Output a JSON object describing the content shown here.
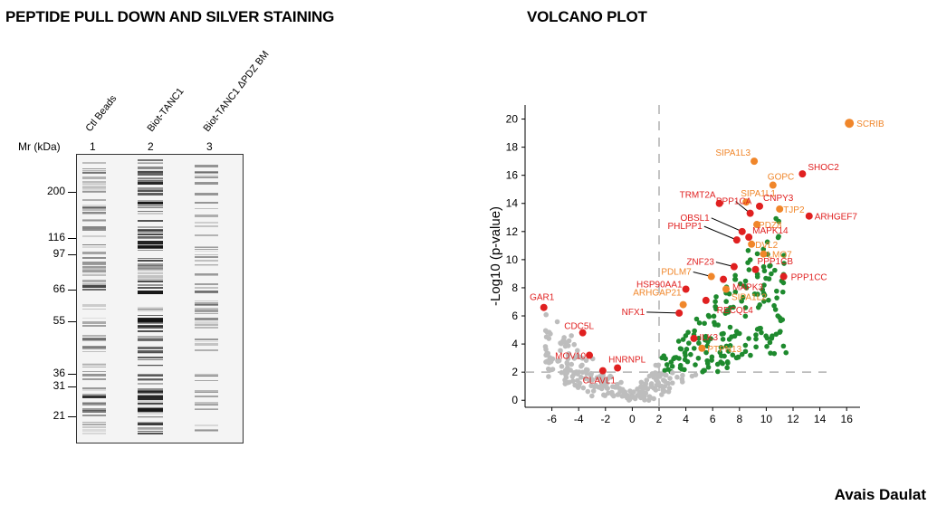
{
  "titles": {
    "left": "PEPTIDE PULL DOWN AND SILVER STAINING",
    "right": "VOLCANO PLOT"
  },
  "author": "Avais Daulat",
  "gel": {
    "mr_label": "Mr (kDa)",
    "lanes": [
      {
        "number": "1",
        "label": "Ctl Beads"
      },
      {
        "number": "2",
        "label": "Biot-TANC1"
      },
      {
        "number": "3",
        "label": "Biot-TANC1 ΔPDZ BM"
      }
    ],
    "markers": [
      "200",
      "116",
      "97",
      "66",
      "55",
      "36",
      "31",
      "21"
    ]
  },
  "colors": {
    "nonsignificant": "#bdbdbd",
    "significant": "#1e8a2e",
    "highlight_red": "#e02020",
    "highlight_orange": "#f0862a",
    "threshold_line": "#b0b0b0"
  },
  "chart_data": {
    "type": "scatter",
    "title": "VOLCANO PLOT",
    "xlabel": "",
    "ylabel": "-Log10 (p-value)",
    "xlim": [
      -8,
      17
    ],
    "ylim": [
      -0.5,
      21
    ],
    "xticks": [
      -6,
      -4,
      -2,
      0,
      2,
      4,
      6,
      8,
      10,
      12,
      14,
      16
    ],
    "yticks": [
      0,
      2,
      4,
      6,
      8,
      10,
      12,
      14,
      16,
      18,
      20
    ],
    "thresholds": {
      "x": 2,
      "y": 2
    },
    "labeled_points": [
      {
        "name": "SCRIB",
        "x": 16.2,
        "y": 19.7,
        "color": "orange"
      },
      {
        "name": "SIPA1L3",
        "x": 9.1,
        "y": 17.0,
        "color": "orange"
      },
      {
        "name": "SHOC2",
        "x": 12.7,
        "y": 16.1,
        "color": "red"
      },
      {
        "name": "GOPC",
        "x": 10.5,
        "y": 15.3,
        "color": "orange"
      },
      {
        "name": "TRMT2A",
        "x": 6.5,
        "y": 14.0,
        "color": "red"
      },
      {
        "name": "SIPA1L1",
        "x": 8.5,
        "y": 14.1,
        "color": "orange"
      },
      {
        "name": "CNPY3",
        "x": 9.5,
        "y": 13.8,
        "color": "red"
      },
      {
        "name": "TJP2",
        "x": 11.0,
        "y": 13.6,
        "color": "orange"
      },
      {
        "name": "PPP1CA",
        "x": 8.8,
        "y": 13.3,
        "color": "red"
      },
      {
        "name": "ARHGEF7",
        "x": 13.2,
        "y": 13.1,
        "color": "red"
      },
      {
        "name": "PDZ8",
        "x": 9.3,
        "y": 12.5,
        "color": "orange"
      },
      {
        "name": "OBSL1",
        "x": 8.2,
        "y": 12.0,
        "color": "red"
      },
      {
        "name": "MAPK14",
        "x": 8.7,
        "y": 11.6,
        "color": "red"
      },
      {
        "name": "PHLPP1",
        "x": 7.8,
        "y": 11.4,
        "color": "red"
      },
      {
        "name": "DVL2",
        "x": 8.9,
        "y": 11.1,
        "color": "orange"
      },
      {
        "name": "LMO7",
        "x": 9.8,
        "y": 10.4,
        "color": "orange"
      },
      {
        "name": "ZNF23",
        "x": 7.6,
        "y": 9.5,
        "color": "red"
      },
      {
        "name": "PPP1CB",
        "x": 9.2,
        "y": 9.3,
        "color": "red"
      },
      {
        "name": "PDLM7",
        "x": 5.9,
        "y": 8.8,
        "color": "orange"
      },
      {
        "name": "PPP1CC",
        "x": 11.3,
        "y": 8.8,
        "color": "red"
      },
      {
        "name": "MAPK3",
        "x": 6.8,
        "y": 8.6,
        "color": "red"
      },
      {
        "name": "HSP90AA1",
        "x": 4.0,
        "y": 7.9,
        "color": "red"
      },
      {
        "name": "SIPA1L2",
        "x": 7.0,
        "y": 7.9,
        "color": "orange"
      },
      {
        "name": "ARHGAP21",
        "x": 3.8,
        "y": 6.8,
        "color": "orange"
      },
      {
        "name": "RECQL4",
        "x": 5.5,
        "y": 7.1,
        "color": "red"
      },
      {
        "name": "GAR1",
        "x": -6.6,
        "y": 6.6,
        "color": "red"
      },
      {
        "name": "NFX1",
        "x": 3.5,
        "y": 6.2,
        "color": "red"
      },
      {
        "name": "CDC5L",
        "x": -3.7,
        "y": 4.8,
        "color": "red"
      },
      {
        "name": "ILK3",
        "x": 4.6,
        "y": 4.4,
        "color": "red"
      },
      {
        "name": "PTPN13",
        "x": 5.2,
        "y": 3.7,
        "color": "orange"
      },
      {
        "name": "MOV10",
        "x": -3.2,
        "y": 3.2,
        "color": "red"
      },
      {
        "name": "HNRNPL",
        "x": -1.1,
        "y": 2.3,
        "color": "red"
      },
      {
        "name": "CLAVL1",
        "x": -2.2,
        "y": 2.1,
        "color": "red"
      }
    ]
  }
}
